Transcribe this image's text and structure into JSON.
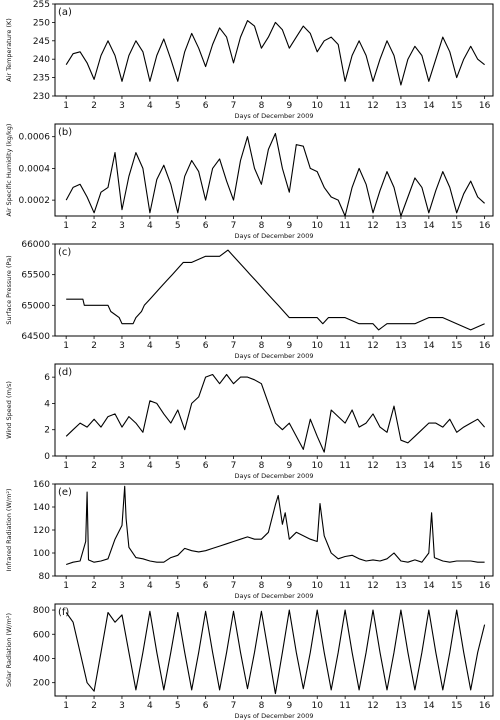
{
  "chart_data": [
    {
      "type": "line",
      "panel_label": "(a)",
      "xlabel": "Days of December 2009",
      "ylabel": "Air Temperature (K)",
      "xlim": [
        0.6,
        16.3
      ],
      "ylim": [
        230,
        255
      ],
      "x_ticks": [
        1,
        2,
        3,
        4,
        5,
        6,
        7,
        8,
        9,
        10,
        11,
        12,
        13,
        14,
        15,
        16
      ],
      "y_ticks": [
        230,
        235,
        240,
        245,
        250,
        255
      ],
      "y_tick_labels": [
        "230",
        "235",
        "240",
        "245",
        "250",
        "255"
      ],
      "series": [
        {
          "x": [
            1,
            1.25,
            1.5,
            1.75,
            2,
            2.25,
            2.5,
            2.75,
            3,
            3.25,
            3.5,
            3.75,
            4,
            4.25,
            4.5,
            4.75,
            5,
            5.25,
            5.5,
            5.75,
            6,
            6.25,
            6.5,
            6.75,
            7,
            7.25,
            7.5,
            7.75,
            8,
            8.25,
            8.5,
            8.75,
            9,
            9.25,
            9.5,
            9.75,
            10,
            10.25,
            10.5,
            10.75,
            11,
            11.25,
            11.5,
            11.75,
            12,
            12.25,
            12.5,
            12.75,
            13,
            13.25,
            13.5,
            13.75,
            14,
            14.25,
            14.5,
            14.75,
            15,
            15.25,
            15.5,
            15.75,
            16
          ],
          "values": [
            238.5,
            241.5,
            242,
            239,
            234.5,
            241,
            245,
            241,
            234,
            241,
            245,
            242,
            234,
            241,
            245.5,
            240,
            234,
            242,
            247,
            243,
            238,
            244,
            248.5,
            246,
            239,
            246,
            250.5,
            249,
            243,
            246,
            250,
            248,
            243,
            246,
            249,
            247,
            242,
            245,
            246,
            244,
            234,
            241,
            245,
            241,
            234,
            240,
            245,
            241,
            233,
            240,
            243.5,
            241,
            234,
            240,
            246,
            242,
            235,
            240,
            243.5,
            240,
            238.5
          ]
        }
      ]
    },
    {
      "type": "line",
      "panel_label": "(b)",
      "xlabel": "Days of December 2009",
      "ylabel": "Air Specific Humidity (kg/kg)",
      "xlim": [
        0.6,
        16.3
      ],
      "ylim": [
        0.0001,
        0.00068
      ],
      "x_ticks": [
        1,
        2,
        3,
        4,
        5,
        6,
        7,
        8,
        9,
        10,
        11,
        12,
        13,
        14,
        15,
        16
      ],
      "y_ticks": [
        0.0002,
        0.0004,
        0.0006
      ],
      "y_tick_labels": [
        "0.0002",
        "0.0004",
        "0.0006"
      ],
      "series": [
        {
          "x": [
            1,
            1.25,
            1.5,
            1.75,
            2,
            2.25,
            2.5,
            2.75,
            3,
            3.25,
            3.5,
            3.75,
            4,
            4.25,
            4.5,
            4.75,
            5,
            5.25,
            5.5,
            5.75,
            6,
            6.25,
            6.5,
            6.75,
            7,
            7.25,
            7.5,
            7.75,
            8,
            8.25,
            8.5,
            8.75,
            9,
            9.25,
            9.5,
            9.75,
            10,
            10.25,
            10.5,
            10.75,
            11,
            11.25,
            11.5,
            11.75,
            12,
            12.25,
            12.5,
            12.75,
            13,
            13.25,
            13.5,
            13.75,
            14,
            14.25,
            14.5,
            14.75,
            15,
            15.25,
            15.5,
            15.75,
            16
          ],
          "values": [
            0.0002,
            0.00028,
            0.0003,
            0.00022,
            0.00012,
            0.00025,
            0.00028,
            0.0005,
            0.00014,
            0.00035,
            0.0005,
            0.0004,
            0.00012,
            0.00033,
            0.00042,
            0.0003,
            0.00012,
            0.00035,
            0.00045,
            0.00038,
            0.0002,
            0.0004,
            0.00046,
            0.00032,
            0.0002,
            0.00045,
            0.0006,
            0.0004,
            0.0003,
            0.00052,
            0.00062,
            0.0004,
            0.00025,
            0.00055,
            0.00054,
            0.0004,
            0.00038,
            0.00028,
            0.00022,
            0.0002,
            0.0001,
            0.00028,
            0.0004,
            0.0003,
            0.00012,
            0.00026,
            0.00038,
            0.00028,
            0.0001,
            0.00022,
            0.00034,
            0.00028,
            0.00012,
            0.00026,
            0.00038,
            0.00028,
            0.00012,
            0.00024,
            0.00032,
            0.00022,
            0.00018
          ]
        }
      ]
    },
    {
      "type": "line",
      "panel_label": "(c)",
      "xlabel": "Days of December 2009",
      "ylabel": "Surface Pressure (Pa)",
      "xlim": [
        0.6,
        16.3
      ],
      "ylim": [
        64500,
        66000
      ],
      "x_ticks": [
        1,
        2,
        3,
        4,
        5,
        6,
        7,
        8,
        9,
        10,
        11,
        12,
        13,
        14,
        15,
        16
      ],
      "y_ticks": [
        64500,
        65000,
        65500,
        66000
      ],
      "y_tick_labels": [
        "64500",
        "65000",
        "65500",
        "66000"
      ],
      "series": [
        {
          "x": [
            1,
            1.6,
            1.65,
            1.7,
            2.5,
            2.6,
            2.9,
            3,
            3.4,
            3.5,
            3.7,
            3.8,
            4,
            4.2,
            4.4,
            4.6,
            4.8,
            5,
            5.2,
            5.5,
            6,
            6.5,
            6.8,
            7,
            7.2,
            7.4,
            7.6,
            7.8,
            8,
            8.2,
            8.4,
            8.6,
            8.8,
            9,
            9.5,
            10,
            10.2,
            10.4,
            11,
            11.5,
            12,
            12.2,
            12.5,
            13,
            13.5,
            14,
            14.5,
            15,
            15.5,
            16
          ],
          "values": [
            65100,
            65100,
            65000,
            65000,
            65000,
            64900,
            64800,
            64700,
            64700,
            64800,
            64900,
            65000,
            65100,
            65200,
            65300,
            65400,
            65500,
            65600,
            65700,
            65700,
            65800,
            65800,
            65900,
            65800,
            65700,
            65600,
            65500,
            65400,
            65300,
            65200,
            65100,
            65000,
            64900,
            64800,
            64800,
            64800,
            64700,
            64800,
            64800,
            64700,
            64700,
            64600,
            64700,
            64700,
            64700,
            64800,
            64800,
            64700,
            64600,
            64700
          ]
        }
      ]
    },
    {
      "type": "line",
      "panel_label": "(d)",
      "xlabel": "Days of December 2009",
      "ylabel": "Wind Speed (m/s)",
      "xlim": [
        0.6,
        16.3
      ],
      "ylim": [
        0,
        7
      ],
      "x_ticks": [
        1,
        2,
        3,
        4,
        5,
        6,
        7,
        8,
        9,
        10,
        11,
        12,
        13,
        14,
        15,
        16
      ],
      "y_ticks": [
        0,
        2,
        4,
        6
      ],
      "y_tick_labels": [
        "0",
        "2",
        "4",
        "6"
      ],
      "series": [
        {
          "x": [
            1,
            1.25,
            1.5,
            1.75,
            2,
            2.25,
            2.5,
            2.75,
            3,
            3.25,
            3.5,
            3.75,
            4,
            4.25,
            4.5,
            4.75,
            5,
            5.25,
            5.5,
            5.75,
            6,
            6.25,
            6.5,
            6.75,
            7,
            7.25,
            7.5,
            7.75,
            8,
            8.25,
            8.5,
            8.75,
            9,
            9.25,
            9.5,
            9.75,
            10,
            10.25,
            10.5,
            10.75,
            11,
            11.25,
            11.5,
            11.75,
            12,
            12.25,
            12.5,
            12.75,
            13,
            13.25,
            13.5,
            13.75,
            14,
            14.25,
            14.5,
            14.75,
            15,
            15.25,
            15.5,
            15.75,
            16
          ],
          "values": [
            1.5,
            2,
            2.5,
            2.2,
            2.8,
            2.2,
            3,
            3.2,
            2.2,
            3,
            2.5,
            1.8,
            4.2,
            4,
            3.2,
            2.5,
            3.5,
            2,
            4,
            4.5,
            6,
            6.2,
            5.5,
            6.2,
            5.5,
            6,
            6,
            5.8,
            5.5,
            4,
            2.5,
            2,
            2.5,
            1.5,
            0.5,
            2.8,
            1.5,
            0.3,
            3.5,
            3,
            2.5,
            3.5,
            2.2,
            2.5,
            3.2,
            2.2,
            1.8,
            3.8,
            1.2,
            1,
            1.5,
            2,
            2.5,
            2.5,
            2.2,
            2.8,
            1.8,
            2.2,
            2.5,
            2.8,
            2.2
          ]
        }
      ]
    },
    {
      "type": "line",
      "panel_label": "(e)",
      "xlabel": "Days of December 2009",
      "ylabel": "Infrared Radiation (W/m²)",
      "xlim": [
        0.6,
        16.3
      ],
      "ylim": [
        80,
        160
      ],
      "x_ticks": [
        1,
        2,
        3,
        4,
        5,
        6,
        7,
        8,
        9,
        10,
        11,
        12,
        13,
        14,
        15,
        16
      ],
      "y_ticks": [
        80,
        100,
        120,
        140,
        160
      ],
      "y_tick_labels": [
        "80",
        "100",
        "120",
        "140",
        "160"
      ],
      "series": [
        {
          "x": [
            1,
            1.25,
            1.5,
            1.7,
            1.75,
            1.8,
            2,
            2.25,
            2.5,
            2.75,
            3,
            3.1,
            3.15,
            3.25,
            3.5,
            3.75,
            4,
            4.25,
            4.5,
            4.75,
            5,
            5.25,
            5.5,
            5.75,
            6,
            6.25,
            6.5,
            6.75,
            7,
            7.25,
            7.5,
            7.75,
            8,
            8.25,
            8.5,
            8.6,
            8.75,
            8.85,
            9,
            9.25,
            9.5,
            9.75,
            10,
            10.1,
            10.25,
            10.5,
            10.75,
            11,
            11.25,
            11.5,
            11.75,
            12,
            12.25,
            12.5,
            12.75,
            13,
            13.25,
            13.5,
            13.75,
            14,
            14.1,
            14.2,
            14.5,
            14.75,
            15,
            15.25,
            15.5,
            15.75,
            16
          ],
          "values": [
            90,
            92,
            93,
            110,
            153,
            94,
            92,
            93,
            95,
            112,
            124,
            158,
            130,
            105,
            96,
            95,
            93,
            92,
            92,
            96,
            98,
            104,
            102,
            101,
            102,
            104,
            106,
            108,
            110,
            112,
            114,
            112,
            112,
            118,
            142,
            150,
            125,
            135,
            112,
            118,
            115,
            112,
            110,
            143,
            115,
            100,
            95,
            97,
            98,
            95,
            93,
            94,
            93,
            95,
            100,
            93,
            92,
            94,
            92,
            100,
            135,
            96,
            93,
            92,
            93,
            93,
            93,
            92,
            92
          ]
        }
      ]
    },
    {
      "type": "line",
      "panel_label": "(f)",
      "xlabel": "Days of December 2009",
      "ylabel": "Solar Radiation (W/m²)",
      "xlim": [
        0.6,
        16.3
      ],
      "ylim": [
        90,
        850
      ],
      "x_ticks": [
        1,
        2,
        3,
        4,
        5,
        6,
        7,
        8,
        9,
        10,
        11,
        12,
        13,
        14,
        15,
        16
      ],
      "y_ticks": [
        200,
        400,
        600,
        800
      ],
      "y_tick_labels": [
        "200",
        "400",
        "600",
        "800"
      ],
      "series": [
        {
          "x": [
            1,
            1.25,
            1.5,
            1.75,
            2,
            2.25,
            2.5,
            2.75,
            3,
            3.25,
            3.5,
            3.75,
            4,
            4.25,
            4.5,
            4.75,
            5,
            5.25,
            5.5,
            5.75,
            6,
            6.25,
            6.5,
            6.75,
            7,
            7.25,
            7.5,
            7.75,
            8,
            8.25,
            8.5,
            8.75,
            9,
            9.25,
            9.5,
            9.75,
            10,
            10.25,
            10.5,
            10.75,
            11,
            11.25,
            11.5,
            11.75,
            12,
            12.25,
            12.5,
            12.75,
            13,
            13.25,
            13.5,
            13.75,
            14,
            14.25,
            14.5,
            14.75,
            15,
            15.25,
            15.5,
            15.75,
            16
          ],
          "values": [
            780,
            700,
            450,
            200,
            130,
            450,
            780,
            700,
            760,
            450,
            140,
            450,
            790,
            450,
            140,
            450,
            780,
            450,
            140,
            450,
            790,
            450,
            140,
            450,
            790,
            450,
            150,
            450,
            790,
            450,
            110,
            450,
            800,
            450,
            150,
            450,
            800,
            450,
            140,
            450,
            800,
            450,
            140,
            450,
            800,
            450,
            140,
            450,
            800,
            450,
            140,
            450,
            800,
            450,
            140,
            450,
            800,
            450,
            140,
            450,
            680
          ]
        }
      ]
    }
  ]
}
